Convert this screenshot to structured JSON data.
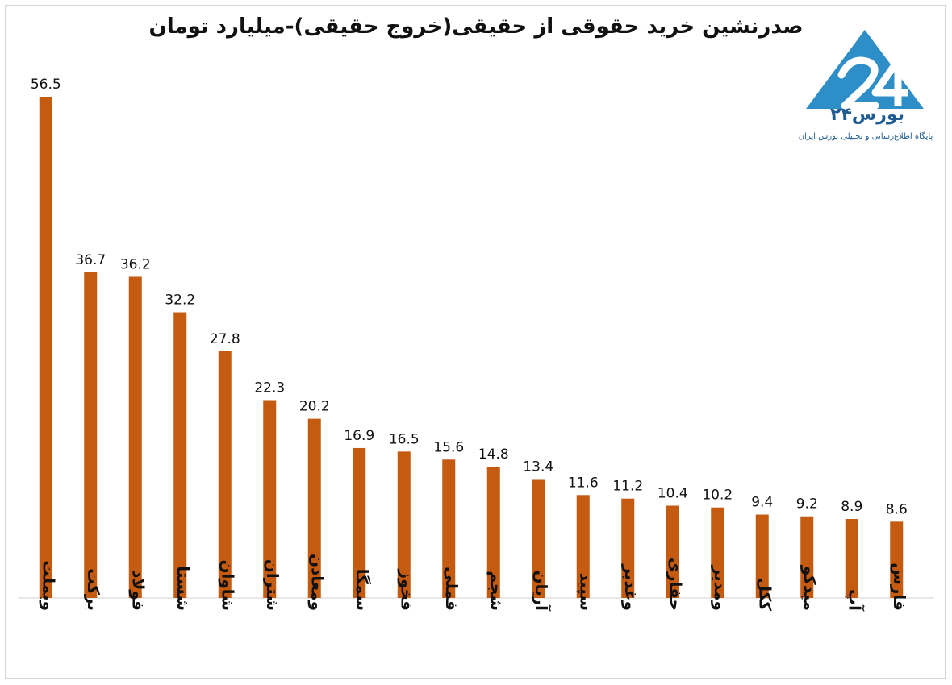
{
  "chart_data": {
    "type": "bar",
    "title": "صدرنشین خرید حقوقی از حقیقی(خروج حقیقی)-میلیارد تومان",
    "categories": [
      "وبملت",
      "برکت",
      "فولاد",
      "شستا",
      "شاوان",
      "شتران",
      "ومعادن",
      "سمگا",
      "فخوز",
      "فملی",
      "شجم",
      "آریان",
      "سپید",
      "وغدیر",
      "حفاری",
      "ومدیر",
      "ککل",
      "میدکو",
      "آپ",
      "فارس"
    ],
    "values": [
      56.5,
      36.7,
      36.2,
      32.2,
      27.8,
      22.3,
      20.2,
      16.9,
      16.5,
      15.6,
      14.8,
      13.4,
      11.6,
      11.2,
      10.4,
      10.2,
      9.4,
      9.2,
      8.9,
      8.6
    ],
    "ylim": [
      0,
      56.5
    ],
    "grid": false,
    "legend": "none",
    "bar_color": "#c55a11",
    "data_labels": true
  },
  "logo": {
    "name": "بورس۲۴",
    "tagline": "پایگاه اطلاع‌رسانی و تحلیلی بورس ایران",
    "color": "#2e8fc8"
  }
}
